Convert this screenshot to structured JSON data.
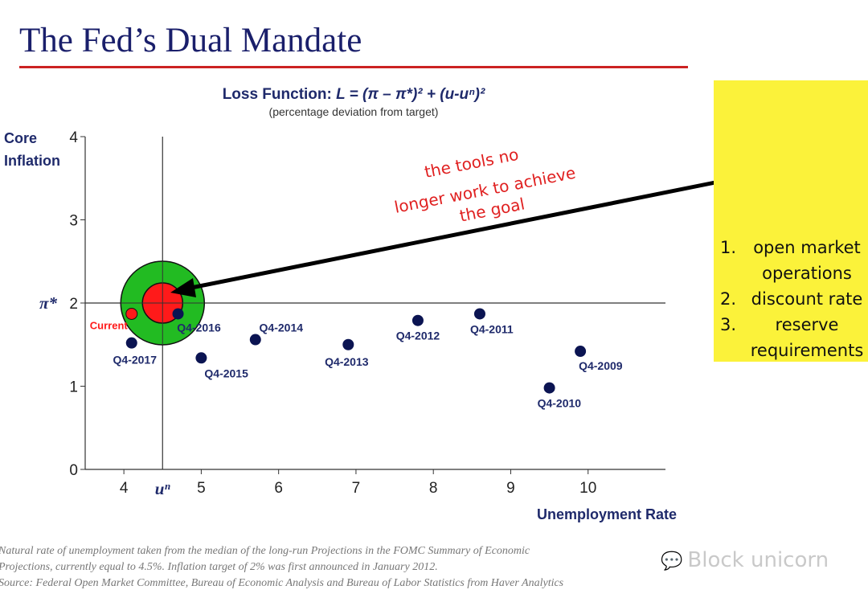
{
  "title": "The Fed’s Dual Mandate",
  "subtitle_prefix": "Loss Function: ",
  "subtitle_formula": "L = (π – π*)² + (u-uⁿ)²",
  "subtitle_note": "(percentage deviation from target)",
  "annotation": [
    "the tools no",
    "longer work to achieve",
    "the goal"
  ],
  "tools": [
    {
      "num": "1.",
      "text": "open market operations"
    },
    {
      "num": "2.",
      "text": "discount rate"
    },
    {
      "num": "3.",
      "text": "reserve requirements"
    }
  ],
  "footnote": [
    "Natural rate of unemployment taken from the median of the long-run Projections in the FOMC Summary of Economic",
    "Projections, currently equal to 4.5%. Inflation target of 2% was first announced in January 2012.",
    "Source: Federal Open Market Committee, Bureau of Economic Analysis and Bureau of Labor Statistics from Haver Analytics"
  ],
  "watermark": "Block unicorn",
  "colors": {
    "title": "#1a1f6b",
    "rule": "#cc2222",
    "point": "#0b1452",
    "current": "#ff1a1a",
    "target_outer": "#22bb22",
    "target_inner": "#ff1a1a",
    "annotation": "#e02020",
    "tools_bg": "#fbf23a"
  },
  "chart_data": {
    "type": "scatter",
    "xlabel": "Unemployment Rate",
    "ylabel": "Core Inflation",
    "xlim": [
      3.5,
      11.0
    ],
    "ylim": [
      0,
      4
    ],
    "x_ticks": [
      "4",
      "5",
      "6",
      "7",
      "8",
      "9",
      "10"
    ],
    "y_ticks": [
      "0",
      "1",
      "2",
      "3",
      "4"
    ],
    "target": {
      "x": 4.5,
      "y": 2,
      "x_label": "uⁿ",
      "y_label": "π*"
    },
    "points": [
      {
        "label": "Q4-2009",
        "x": 9.9,
        "y": 1.42
      },
      {
        "label": "Q4-2010",
        "x": 9.5,
        "y": 0.98
      },
      {
        "label": "Q4-2011",
        "x": 8.6,
        "y": 1.87
      },
      {
        "label": "Q4-2012",
        "x": 7.8,
        "y": 1.79
      },
      {
        "label": "Q4-2013",
        "x": 6.9,
        "y": 1.5
      },
      {
        "label": "Q4-2014",
        "x": 5.7,
        "y": 1.56
      },
      {
        "label": "Q4-2015",
        "x": 5.0,
        "y": 1.34
      },
      {
        "label": "Q4-2016",
        "x": 4.7,
        "y": 1.87
      },
      {
        "label": "Q4-2017",
        "x": 4.1,
        "y": 1.52
      }
    ],
    "current": {
      "label": "Current",
      "x": 4.1,
      "y": 1.87
    },
    "grid": false
  }
}
